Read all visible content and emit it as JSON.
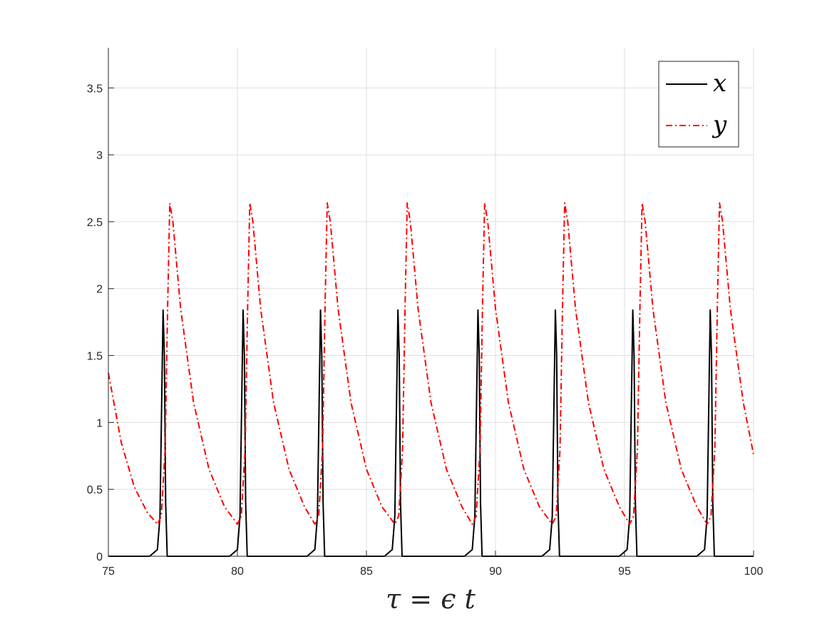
{
  "chart_data": {
    "type": "line",
    "title": "",
    "xlabel": "τ = ϵ t",
    "ylabel": "",
    "xlim": [
      75,
      100
    ],
    "ylim": [
      0,
      3.8
    ],
    "grid": true,
    "legend_position": "top-right",
    "x_ticks": [
      75,
      80,
      85,
      90,
      95,
      100
    ],
    "x_tick_labels": [
      "75",
      "80",
      "85",
      "90",
      "95",
      "100"
    ],
    "y_ticks": [
      0,
      0.5,
      1,
      1.5,
      2,
      2.5,
      3,
      3.5
    ],
    "y_tick_labels": [
      "0",
      "0.5",
      "1",
      "1.5",
      "2",
      "2.5",
      "3",
      "3.5"
    ],
    "series": [
      {
        "name": "x",
        "color": "#000000",
        "style": "solid",
        "x": [
          75,
          76.6,
          76.9,
          77.0,
          77.07,
          77.12,
          77.17,
          77.22,
          77.28,
          77.38,
          79.7,
          80.0,
          80.1,
          80.17,
          80.22,
          80.27,
          80.32,
          80.38,
          80.48,
          82.7,
          83.0,
          83.1,
          83.17,
          83.22,
          83.27,
          83.32,
          83.38,
          83.48,
          85.7,
          86.0,
          86.1,
          86.17,
          86.22,
          86.27,
          86.32,
          86.38,
          86.48,
          88.8,
          89.1,
          89.2,
          89.27,
          89.32,
          89.37,
          89.42,
          89.48,
          89.58,
          91.8,
          92.1,
          92.2,
          92.27,
          92.32,
          92.37,
          92.42,
          92.48,
          92.58,
          94.8,
          95.1,
          95.2,
          95.27,
          95.32,
          95.37,
          95.42,
          95.48,
          95.58,
          97.8,
          98.1,
          98.2,
          98.27,
          98.32,
          98.37,
          98.42,
          98.48,
          98.58,
          100
        ],
        "y": [
          0,
          0,
          0.05,
          0.3,
          1.2,
          1.84,
          1.5,
          0.4,
          0,
          0,
          0,
          0.05,
          0.3,
          1.2,
          1.84,
          1.5,
          0.4,
          0,
          0,
          0,
          0.05,
          0.3,
          1.2,
          1.84,
          1.5,
          0.4,
          0,
          0,
          0,
          0.05,
          0.3,
          1.2,
          1.84,
          1.5,
          0.4,
          0,
          0,
          0,
          0.05,
          0.3,
          1.2,
          1.84,
          1.5,
          0.4,
          0,
          0,
          0,
          0.05,
          0.3,
          1.2,
          1.84,
          1.5,
          0.4,
          0,
          0,
          0,
          0.05,
          0.3,
          1.2,
          1.84,
          1.5,
          0.4,
          0,
          0,
          0,
          0.05,
          0.3,
          1.2,
          1.84,
          1.5,
          0.4,
          0,
          0,
          0
        ]
      },
      {
        "name": "y",
        "color": "#ff0000",
        "style": "dashdot",
        "x": [
          75,
          75.5,
          76.0,
          76.5,
          76.9,
          77.05,
          77.2,
          77.3,
          77.38,
          77.5,
          77.8,
          78.3,
          78.9,
          79.5,
          80.0,
          80.15,
          80.3,
          80.4,
          80.48,
          80.6,
          80.9,
          81.4,
          82.0,
          82.6,
          83.0,
          83.15,
          83.3,
          83.4,
          83.48,
          83.6,
          83.9,
          84.4,
          85.0,
          85.6,
          86.1,
          86.25,
          86.4,
          86.5,
          86.58,
          86.7,
          87.0,
          87.5,
          88.1,
          88.7,
          89.1,
          89.25,
          89.4,
          89.5,
          89.58,
          89.7,
          90.0,
          90.5,
          91.1,
          91.7,
          92.2,
          92.35,
          92.5,
          92.6,
          92.68,
          92.8,
          93.1,
          93.6,
          94.2,
          94.8,
          95.2,
          95.35,
          95.5,
          95.6,
          95.68,
          95.8,
          96.1,
          96.6,
          97.2,
          97.8,
          98.2,
          98.35,
          98.5,
          98.6,
          98.68,
          98.8,
          99.1,
          99.6,
          100
        ],
        "y": [
          1.37,
          0.85,
          0.52,
          0.33,
          0.24,
          0.3,
          0.8,
          1.9,
          2.64,
          2.5,
          1.85,
          1.15,
          0.65,
          0.37,
          0.24,
          0.3,
          0.8,
          1.9,
          2.64,
          2.5,
          1.85,
          1.15,
          0.65,
          0.37,
          0.24,
          0.3,
          0.8,
          1.9,
          2.64,
          2.5,
          1.85,
          1.15,
          0.65,
          0.37,
          0.24,
          0.3,
          0.8,
          1.9,
          2.64,
          2.5,
          1.85,
          1.15,
          0.65,
          0.37,
          0.24,
          0.3,
          0.8,
          1.9,
          2.64,
          2.5,
          1.85,
          1.15,
          0.65,
          0.37,
          0.24,
          0.3,
          0.8,
          1.9,
          2.64,
          2.5,
          1.85,
          1.15,
          0.65,
          0.37,
          0.24,
          0.3,
          0.8,
          1.9,
          2.64,
          2.5,
          1.85,
          1.15,
          0.65,
          0.37,
          0.24,
          0.3,
          0.8,
          1.9,
          2.64,
          2.5,
          1.85,
          1.15,
          0.76
        ]
      }
    ]
  }
}
